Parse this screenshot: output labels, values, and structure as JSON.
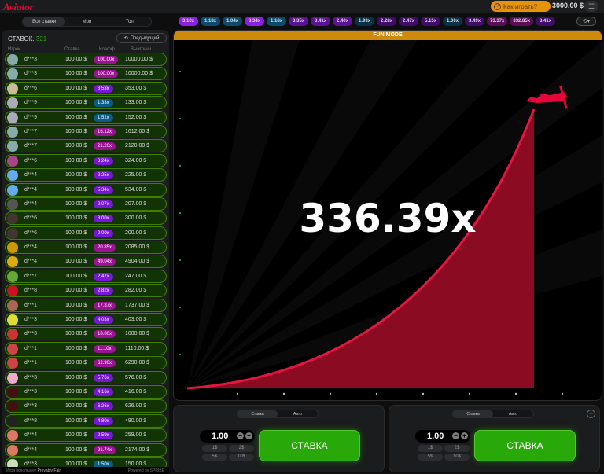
{
  "header": {
    "logo": "Aviator",
    "how_to_play": "Как играть?",
    "balance": "3000.00 $"
  },
  "tabs": [
    "Все ставки",
    "Мои",
    "Топ"
  ],
  "history": [
    {
      "v": "3.10x",
      "c": "#8b1fe4"
    },
    {
      "v": "1.18x",
      "c": "#0b4b6e"
    },
    {
      "v": "1.04x",
      "c": "#0b4b6e"
    },
    {
      "v": "8.34x",
      "c": "#8b1fe4"
    },
    {
      "v": "1.18x",
      "c": "#0b4b6e"
    },
    {
      "v": "3.35x",
      "c": "#5a1296"
    },
    {
      "v": "3.41x",
      "c": "#5a1296"
    },
    {
      "v": "2.40x",
      "c": "#5a1296"
    },
    {
      "v": "1.93x",
      "c": "#083248"
    },
    {
      "v": "2.28x",
      "c": "#3f0c6b"
    },
    {
      "v": "2.47x",
      "c": "#3f0c6b"
    },
    {
      "v": "5.15x",
      "c": "#3f0c6b"
    },
    {
      "v": "1.00x",
      "c": "#083248"
    },
    {
      "v": "3.49x",
      "c": "#3f0c6b"
    },
    {
      "v": "73.37x",
      "c": "#5c0c58"
    },
    {
      "v": "332.85x",
      "c": "#5c0c58"
    },
    {
      "v": "3.41x",
      "c": "#3f0c6b"
    }
  ],
  "sidebar": {
    "bets_label": "СТАВОК",
    "bets_count": "321",
    "previous": "Предыдущий",
    "columns": [
      "Игрок",
      "Ставка",
      "Коэфф.",
      "Выигрыш"
    ],
    "rows": [
      [
        "d***3",
        "100.00 $",
        "100.00x",
        "10000.00 $"
      ],
      [
        "d***3",
        "100.00 $",
        "100.00x",
        "10000.00 $"
      ],
      [
        "d***6",
        "100.00 $",
        "3.53x",
        "353.00 $"
      ],
      [
        "d***9",
        "100.00 $",
        "1.33x",
        "133.00 $"
      ],
      [
        "d***9",
        "100.00 $",
        "1.52x",
        "152.00 $"
      ],
      [
        "d***7",
        "100.00 $",
        "16.12x",
        "1612.00 $"
      ],
      [
        "d***7",
        "100.00 $",
        "21.20x",
        "2120.00 $"
      ],
      [
        "d***6",
        "100.00 $",
        "3.24x",
        "324.00 $"
      ],
      [
        "d***4",
        "100.00 $",
        "2.25x",
        "225.00 $"
      ],
      [
        "d***4",
        "100.00 $",
        "5.34x",
        "534.00 $"
      ],
      [
        "d***4",
        "100.00 $",
        "2.07x",
        "207.00 $"
      ],
      [
        "d***6",
        "100.00 $",
        "3.00x",
        "300.00 $"
      ],
      [
        "d***6",
        "100.00 $",
        "2.00x",
        "200.00 $"
      ],
      [
        "d***4",
        "100.00 $",
        "20.85x",
        "2085.00 $"
      ],
      [
        "d***4",
        "100.00 $",
        "49.04x",
        "4904.00 $"
      ],
      [
        "d***7",
        "100.00 $",
        "2.47x",
        "247.00 $"
      ],
      [
        "d***8",
        "100.00 $",
        "2.82x",
        "282.00 $"
      ],
      [
        "d***1",
        "100.00 $",
        "17.37x",
        "1737.00 $"
      ],
      [
        "d***3",
        "100.00 $",
        "4.03x",
        "403.00 $"
      ],
      [
        "d***3",
        "100.00 $",
        "10.00x",
        "1000.00 $"
      ],
      [
        "d***1",
        "100.00 $",
        "11.10x",
        "1110.00 $"
      ],
      [
        "d***1",
        "100.00 $",
        "62.90x",
        "6290.00 $"
      ],
      [
        "d***3",
        "100.00 $",
        "5.76x",
        "576.00 $"
      ],
      [
        "d***3",
        "100.00 $",
        "4.16x",
        "416.00 $"
      ],
      [
        "d***3",
        "100.00 $",
        "6.26x",
        "626.00 $"
      ],
      [
        "d***8",
        "100.00 $",
        "4.80x",
        "480.00 $"
      ],
      [
        "d***4",
        "100.00 $",
        "2.59x",
        "259.00 $"
      ],
      [
        "d***4",
        "100.00 $",
        "21.74x",
        "2174.00 $"
      ],
      [
        "d***3",
        "100.00 $",
        "1.50x",
        "150.00 $"
      ]
    ],
    "footer_uses": "Игра использует",
    "provably_fair": "Provably Fair",
    "powered_by": "Powered by SPRIBE"
  },
  "game": {
    "banner": "FUN MODE",
    "multiplier": "336.39x"
  },
  "panels": [
    {
      "tabs": [
        "Ставка",
        "Авто"
      ],
      "amount": "1.00",
      "quick": [
        "1$",
        "2$",
        "5$",
        "10$"
      ],
      "button": "СТАВКА"
    },
    {
      "tabs": [
        "Ставка",
        "Авто"
      ],
      "amount": "1.00",
      "quick": [
        "1$",
        "2$",
        "5$",
        "10$"
      ],
      "button": "СТАВКА"
    }
  ],
  "colors": {
    "accent_red": "#e50539",
    "bet_green": "#28a909",
    "fun_mode": "#d08a0b"
  }
}
